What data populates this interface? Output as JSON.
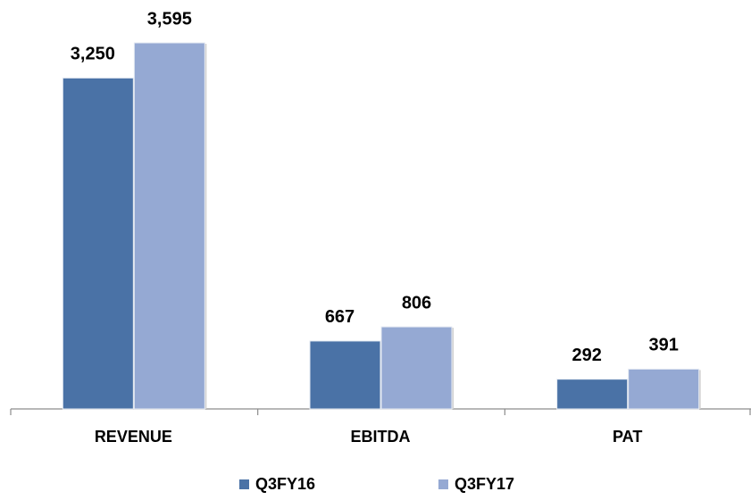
{
  "chart_data": {
    "type": "bar",
    "categories": [
      "REVENUE",
      "EBITDA",
      "PAT"
    ],
    "series": [
      {
        "name": "Q3FY16",
        "color": "#4a72a6",
        "values": [
          3250,
          667,
          292
        ],
        "value_labels": [
          "3,250",
          "667",
          "292"
        ]
      },
      {
        "name": "Q3FY17",
        "color": "#95a9d3",
        "values": [
          3595,
          806,
          391
        ],
        "value_labels": [
          "3,595",
          "806",
          "391"
        ]
      }
    ],
    "legend": "bottom",
    "grid": false
  }
}
